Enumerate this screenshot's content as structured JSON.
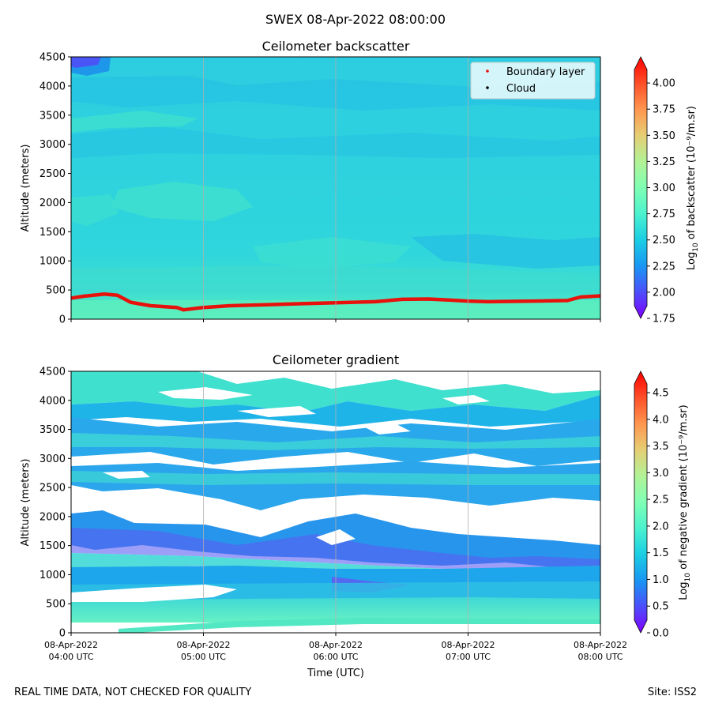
{
  "figure": {
    "suptitle": "SWEX 08-Apr-2022 08:00:00",
    "footer_left": "REAL TIME DATA, NOT CHECKED FOR QUALITY",
    "footer_right": "Site: ISS2"
  },
  "chart_data": [
    {
      "type": "heatmap",
      "title": "Ceilometer backscatter",
      "xlabel": "",
      "ylabel": "Altitude (meters)",
      "ylim": [
        0,
        4500
      ],
      "yticks": [
        0,
        500,
        1000,
        1500,
        2000,
        2500,
        3000,
        3500,
        4000,
        4500
      ],
      "x_hours_utc": [
        4,
        8
      ],
      "grid": "vertical",
      "colorbar": {
        "label_prefix": "Log",
        "label_sub": "10",
        "label_suffix": " of backscatter (10⁻⁹/m.sr)",
        "range": [
          1.75,
          4.25
        ],
        "ticks": [
          "1.75",
          "2.00",
          "2.25",
          "2.50",
          "2.75",
          "3.00",
          "3.25",
          "3.50",
          "3.75",
          "4.00"
        ],
        "tick_values": [
          1.75,
          2.0,
          2.25,
          2.5,
          2.75,
          3.0,
          3.25,
          3.5,
          3.75,
          4.0
        ]
      },
      "legend": {
        "placement": "top-right",
        "entries": [
          {
            "label": "Boundary layer",
            "color": "#e8120c"
          },
          {
            "label": "Cloud",
            "color": "#000000"
          }
        ]
      },
      "boundary_layer": {
        "time_hours": [
          4.0,
          4.1,
          4.25,
          4.35,
          4.45,
          4.6,
          4.8,
          4.85,
          5.0,
          5.2,
          5.5,
          5.8,
          6.0,
          6.3,
          6.5,
          6.7,
          6.85,
          7.0,
          7.15,
          7.5,
          7.75,
          7.85,
          8.0
        ],
        "height_m": [
          360,
          395,
          430,
          410,
          290,
          230,
          200,
          160,
          200,
          230,
          250,
          270,
          280,
          300,
          340,
          345,
          330,
          310,
          300,
          310,
          320,
          380,
          400
        ]
      }
    },
    {
      "type": "heatmap",
      "title": "Ceilometer gradient",
      "xlabel": "Time (UTC)",
      "ylabel": "Altitude (meters)",
      "ylim": [
        0,
        4500
      ],
      "yticks": [
        0,
        500,
        1000,
        1500,
        2000,
        2500,
        3000,
        3500,
        4000,
        4500
      ],
      "xticks": [
        {
          "date": "08-Apr-2022",
          "time": "04:00 UTC"
        },
        {
          "date": "08-Apr-2022",
          "time": "05:00 UTC"
        },
        {
          "date": "08-Apr-2022",
          "time": "06:00 UTC"
        },
        {
          "date": "08-Apr-2022",
          "time": "07:00 UTC"
        },
        {
          "date": "08-Apr-2022",
          "time": "08:00 UTC"
        }
      ],
      "grid": "vertical",
      "colorbar": {
        "label_prefix": "Log",
        "label_sub": "10",
        "label_suffix": " of negative gradient (10⁻⁹/m.sr)",
        "range": [
          0.0,
          4.9
        ],
        "ticks": [
          "0.0",
          "0.5",
          "1.0",
          "1.5",
          "2.0",
          "2.5",
          "3.0",
          "3.5",
          "4.0",
          "4.5"
        ],
        "tick_values": [
          0.0,
          0.5,
          1.0,
          1.5,
          2.0,
          2.5,
          3.0,
          3.5,
          4.0,
          4.5
        ]
      }
    }
  ]
}
